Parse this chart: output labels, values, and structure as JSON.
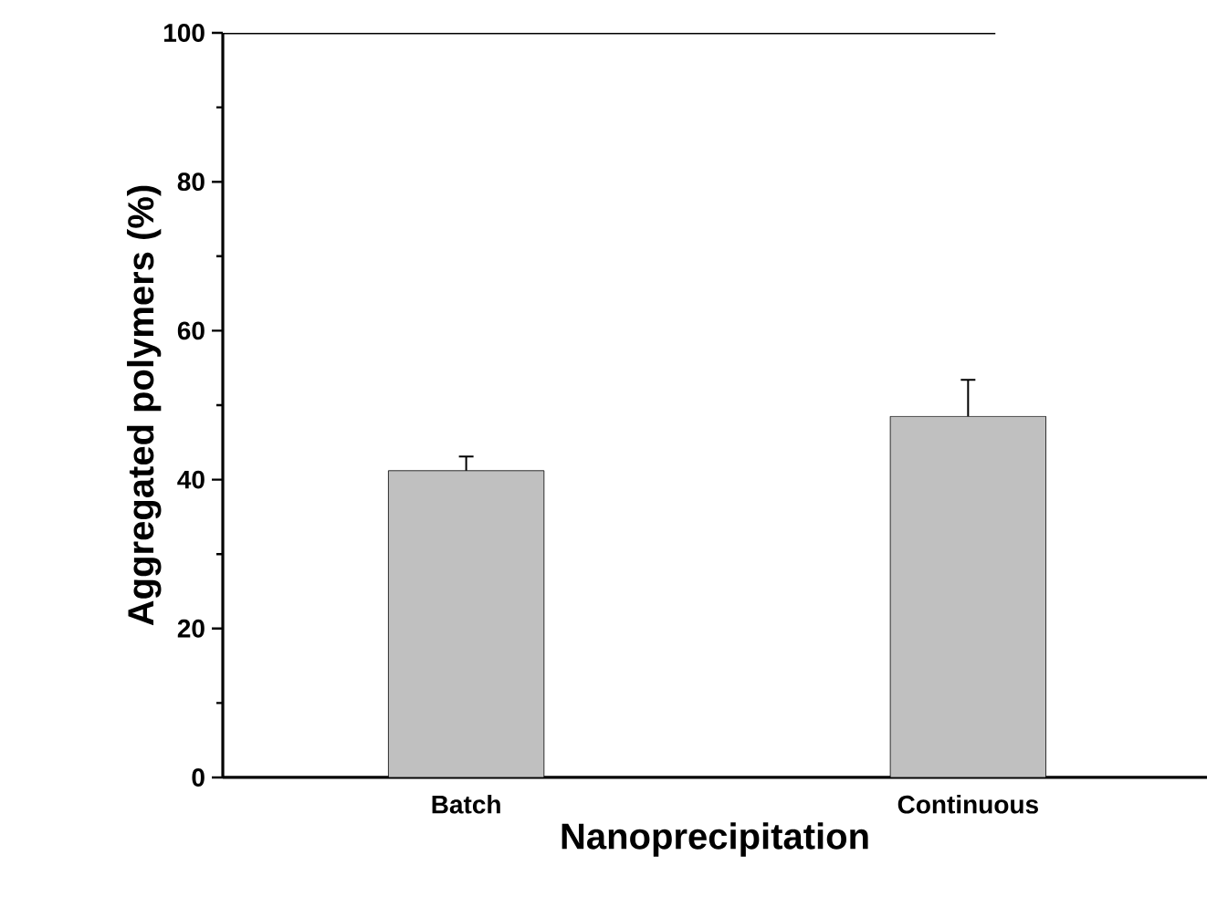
{
  "chart_data": {
    "type": "bar",
    "xlabel": "Nanoprecipitation",
    "ylabel": "Aggregated polymers (%)",
    "categories": [
      "Batch",
      "Continuous"
    ],
    "values": [
      41.2,
      48.5
    ],
    "errors": [
      1.9,
      4.9
    ],
    "color": "#c0c0c0",
    "ylim": [
      0,
      100
    ],
    "yticks": [
      0,
      20,
      40,
      60,
      80,
      100
    ],
    "grid": false
  }
}
